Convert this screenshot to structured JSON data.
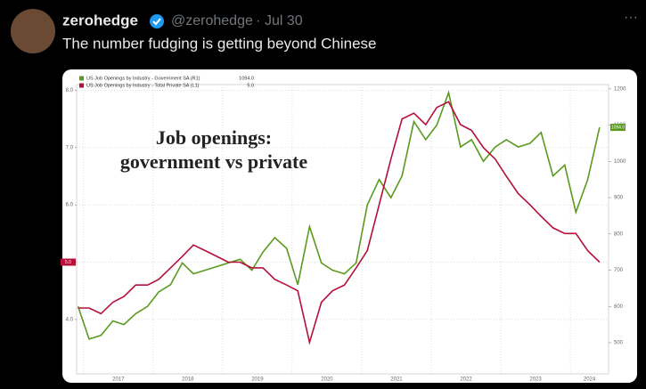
{
  "tweet": {
    "name": "zerohedge",
    "handle": "@zerohedge",
    "date": "Jul 30",
    "text": "The number fudging is getting beyond Chinese"
  },
  "chart_data": {
    "type": "line",
    "annotation": [
      "Job openings:",
      "government vs private"
    ],
    "x": [
      2016.92,
      2017.08,
      2017.25,
      2017.42,
      2017.58,
      2017.75,
      2017.92,
      2018.08,
      2018.25,
      2018.42,
      2018.58,
      2018.75,
      2018.92,
      2019.08,
      2019.25,
      2019.42,
      2019.58,
      2019.75,
      2019.92,
      2020.08,
      2020.25,
      2020.42,
      2020.58,
      2020.75,
      2020.92,
      2021.08,
      2021.25,
      2021.42,
      2021.58,
      2021.75,
      2021.92,
      2022.08,
      2022.25,
      2022.42,
      2022.58,
      2022.75,
      2022.92,
      2023.08,
      2023.25,
      2023.42,
      2023.58,
      2023.75,
      2023.92,
      2024.08,
      2024.25,
      2024.42
    ],
    "series": [
      {
        "name": "US Job Openings by Industry - Government SA (R1)",
        "color": "#5a9a1e",
        "axis": "y2",
        "value_label": "1094.0",
        "values": [
          600,
          510,
          520,
          560,
          550,
          580,
          600,
          640,
          660,
          720,
          690,
          700,
          710,
          720,
          730,
          700,
          750,
          790,
          760,
          660,
          820,
          720,
          700,
          690,
          720,
          880,
          950,
          900,
          960,
          1110,
          1060,
          1100,
          1190,
          1040,
          1060,
          1000,
          1040,
          1060,
          1040,
          1050,
          1080,
          960,
          990,
          860,
          950,
          1094
        ]
      },
      {
        "name": "US Job Openings by Industry - Total Private SA (L1)",
        "color": "#b5103a",
        "value_label": "5.0",
        "values": [
          4.2,
          4.2,
          4.1,
          4.3,
          4.4,
          4.6,
          4.6,
          4.7,
          4.9,
          5.1,
          5.3,
          5.2,
          5.1,
          5.0,
          5.0,
          4.9,
          4.9,
          4.7,
          4.6,
          4.5,
          3.6,
          4.3,
          4.5,
          4.6,
          4.9,
          5.2,
          6.0,
          6.8,
          7.5,
          7.6,
          7.4,
          7.7,
          7.8,
          7.4,
          7.3,
          7.0,
          6.8,
          6.5,
          6.2,
          6.0,
          5.8,
          5.6,
          5.5,
          5.5,
          5.2,
          5.0
        ]
      }
    ],
    "xlim": [
      2016.9,
      2024.55
    ],
    "xticks": [
      2017,
      2018,
      2019,
      2020,
      2021,
      2022,
      2023,
      2024
    ],
    "ylim": [
      3.05,
      8.1
    ],
    "yticks": [
      {
        "value": 4,
        "label": "4.0"
      },
      {
        "value": 5,
        "label": "5.0"
      },
      {
        "value": 6,
        "label": "6.0"
      },
      {
        "value": 7,
        "label": "7.0"
      },
      {
        "value": 8,
        "label": "8.0"
      }
    ],
    "y2lim": [
      414,
      1212
    ],
    "y2ticks": [
      500,
      600,
      700,
      800,
      900,
      1000,
      1100,
      1200
    ],
    "grid": true
  }
}
